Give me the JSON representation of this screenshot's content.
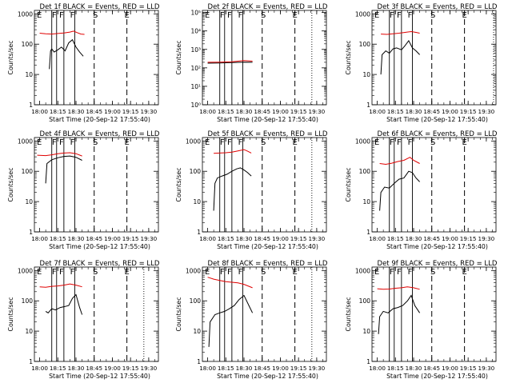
{
  "figure": {
    "ylabel": "Counts/sec",
    "xlabel": "Start Time (20-Sep-12 17:55:40)",
    "x_tick_labels": [
      "18:00",
      "18:15",
      "18:30",
      "18:45",
      "19:00",
      "19:15",
      "19:30"
    ],
    "y_tick_labels": [
      "1",
      "10",
      "100",
      "1000"
    ],
    "y_tick_labels_det2": [
      "10⁰",
      "10¹",
      "10²",
      "10³",
      "10⁴",
      "10⁵"
    ],
    "colors": {
      "events": "#000000",
      "lld": "#e00000",
      "axes": "#000000",
      "background": "#ffffff"
    }
  },
  "chart_data": [
    {
      "type": "line",
      "panel": 1,
      "title": "Det 1f BLACK = Events, RED = LLD",
      "ylim": [
        1,
        1300
      ],
      "yscale": "log",
      "xlim": [
        "17:55:40",
        "19:38"
      ],
      "markers": [
        {
          "label": "F",
          "t": "18:12"
        },
        {
          "label": "F",
          "t": "18:18"
        },
        {
          "label": "F",
          "t": "18:27"
        },
        {
          "label": "S",
          "t": "18:46"
        },
        {
          "label": "E",
          "t": "19:12"
        }
      ],
      "solid_vlines": [
        "18:10",
        "18:14",
        "18:20",
        "18:29"
      ],
      "dashed_vlines": [
        "18:45",
        "19:12"
      ],
      "dotted_vlines": [],
      "series": [
        {
          "name": "Events",
          "color": "#000000",
          "t": [
            "18:08",
            "18:09",
            "18:10",
            "18:12",
            "18:15",
            "18:18",
            "18:21",
            "18:24",
            "18:27",
            "18:30",
            "18:33",
            "18:36"
          ],
          "values": [
            15,
            60,
            70,
            55,
            65,
            80,
            60,
            110,
            140,
            80,
            55,
            40
          ]
        },
        {
          "name": "LLD",
          "color": "#e00000",
          "t": [
            "18:00",
            "18:05",
            "18:10",
            "18:15",
            "18:20",
            "18:25",
            "18:28",
            "18:31",
            "18:34",
            "18:37"
          ],
          "values": [
            230,
            220,
            215,
            225,
            235,
            250,
            270,
            240,
            215,
            210
          ]
        }
      ]
    },
    {
      "type": "line",
      "panel": 2,
      "title": "Det 2f BLACK = Events, RED = LLD",
      "ylim": [
        1,
        130000
      ],
      "yscale": "log",
      "xlim": [
        "17:55:40",
        "19:38"
      ],
      "markers": [
        {
          "label": "F",
          "t": "18:12"
        },
        {
          "label": "F",
          "t": "18:18"
        },
        {
          "label": "F",
          "t": "18:27"
        },
        {
          "label": "S",
          "t": "18:46"
        },
        {
          "label": "E",
          "t": "19:12"
        }
      ],
      "solid_vlines": [
        "18:10",
        "18:14",
        "18:20",
        "18:29"
      ],
      "dashed_vlines": [
        "18:45",
        "19:12"
      ],
      "dotted_vlines": [
        "19:26"
      ],
      "series": [
        {
          "name": "Events",
          "color": "#000000",
          "t": [
            "18:00",
            "18:10",
            "18:20",
            "18:30",
            "18:37"
          ],
          "values": [
            180,
            185,
            195,
            205,
            200
          ]
        },
        {
          "name": "LLD",
          "color": "#e00000",
          "t": [
            "18:00",
            "18:10",
            "18:20",
            "18:30",
            "18:37"
          ],
          "values": [
            200,
            205,
            215,
            250,
            230
          ]
        }
      ]
    },
    {
      "type": "line",
      "panel": 3,
      "title": "Det 3f BLACK = Events, RED = LLD",
      "ylim": [
        1,
        1300
      ],
      "yscale": "log",
      "xlim": [
        "17:55:40",
        "19:38"
      ],
      "markers": [
        {
          "label": "F",
          "t": "18:12"
        },
        {
          "label": "F",
          "t": "18:18"
        },
        {
          "label": "F",
          "t": "18:27"
        },
        {
          "label": "S",
          "t": "18:46"
        },
        {
          "label": "E",
          "t": "19:12"
        }
      ],
      "solid_vlines": [
        "18:10",
        "18:14",
        "18:20",
        "18:29"
      ],
      "dashed_vlines": [
        "18:45",
        "19:12"
      ],
      "dotted_vlines": [
        "19:36"
      ],
      "series": [
        {
          "name": "Events",
          "color": "#000000",
          "t": [
            "18:03",
            "18:04",
            "18:07",
            "18:10",
            "18:13",
            "18:16",
            "18:20",
            "18:23",
            "18:26",
            "18:29",
            "18:32",
            "18:35"
          ],
          "values": [
            10,
            45,
            60,
            50,
            70,
            75,
            65,
            90,
            130,
            75,
            60,
            45
          ]
        },
        {
          "name": "LLD",
          "color": "#e00000",
          "t": [
            "18:03",
            "18:08",
            "18:13",
            "18:18",
            "18:23",
            "18:28",
            "18:32",
            "18:35"
          ],
          "values": [
            215,
            210,
            220,
            230,
            245,
            260,
            245,
            230
          ]
        }
      ]
    },
    {
      "type": "line",
      "panel": 4,
      "title": "Det 4f BLACK = Events, RED = LLD",
      "ylim": [
        1,
        1300
      ],
      "yscale": "log",
      "xlim": [
        "17:55:40",
        "19:38"
      ],
      "markers": [
        {
          "label": "F",
          "t": "18:12"
        },
        {
          "label": "F",
          "t": "18:18"
        },
        {
          "label": "F",
          "t": "18:27"
        },
        {
          "label": "S",
          "t": "18:46"
        },
        {
          "label": "E",
          "t": "19:12"
        }
      ],
      "solid_vlines": [
        "18:10",
        "18:14",
        "18:20",
        "18:29"
      ],
      "dashed_vlines": [
        "18:45",
        "19:12"
      ],
      "dotted_vlines": [],
      "series": [
        {
          "name": "Events",
          "color": "#000000",
          "t": [
            "18:05",
            "18:06",
            "18:10",
            "18:15",
            "18:20",
            "18:25",
            "18:30",
            "18:35"
          ],
          "values": [
            40,
            180,
            240,
            280,
            310,
            320,
            290,
            230
          ]
        },
        {
          "name": "LLD",
          "color": "#e00000",
          "t": [
            "17:58",
            "18:05",
            "18:10",
            "18:15",
            "18:20",
            "18:25",
            "18:30",
            "18:35"
          ],
          "values": [
            340,
            330,
            350,
            380,
            400,
            410,
            380,
            320
          ]
        }
      ]
    },
    {
      "type": "line",
      "panel": 5,
      "title": "Det 5f BLACK = Events, RED = LLD",
      "ylim": [
        1,
        1300
      ],
      "yscale": "log",
      "xlim": [
        "17:55:40",
        "19:38"
      ],
      "markers": [
        {
          "label": "F",
          "t": "18:12"
        },
        {
          "label": "F",
          "t": "18:18"
        },
        {
          "label": "F",
          "t": "18:27"
        },
        {
          "label": "S",
          "t": "18:46"
        },
        {
          "label": "E",
          "t": "19:12"
        }
      ],
      "solid_vlines": [
        "18:10",
        "18:14",
        "18:20",
        "18:29"
      ],
      "dashed_vlines": [
        "18:45",
        "19:12"
      ],
      "dotted_vlines": [
        "19:26"
      ],
      "series": [
        {
          "name": "Events",
          "color": "#000000",
          "t": [
            "18:05",
            "18:06",
            "18:08",
            "18:12",
            "18:16",
            "18:20",
            "18:24",
            "18:27",
            "18:30",
            "18:33",
            "18:36"
          ],
          "values": [
            5,
            40,
            60,
            70,
            80,
            100,
            120,
            130,
            110,
            90,
            70
          ]
        },
        {
          "name": "LLD",
          "color": "#e00000",
          "t": [
            "18:05",
            "18:10",
            "18:15",
            "18:20",
            "18:25",
            "18:30",
            "18:33",
            "18:36"
          ],
          "values": [
            390,
            400,
            410,
            430,
            470,
            520,
            460,
            400
          ]
        }
      ]
    },
    {
      "type": "line",
      "panel": 6,
      "title": "Det 6f BLACK = Events, RED = LLD",
      "ylim": [
        1,
        1300
      ],
      "yscale": "log",
      "xlim": [
        "17:55:40",
        "19:38"
      ],
      "markers": [
        {
          "label": "F",
          "t": "18:12"
        },
        {
          "label": "F",
          "t": "18:18"
        },
        {
          "label": "F",
          "t": "18:27"
        },
        {
          "label": "S",
          "t": "18:46"
        },
        {
          "label": "E",
          "t": "19:12"
        }
      ],
      "solid_vlines": [
        "18:10",
        "18:14",
        "18:20",
        "18:29"
      ],
      "dashed_vlines": [
        "18:45",
        "19:12"
      ],
      "dotted_vlines": [],
      "series": [
        {
          "name": "Events",
          "color": "#000000",
          "t": [
            "18:02",
            "18:03",
            "18:06",
            "18:10",
            "18:14",
            "18:18",
            "18:22",
            "18:26",
            "18:29",
            "18:32",
            "18:35"
          ],
          "values": [
            5,
            20,
            30,
            28,
            40,
            55,
            60,
            100,
            90,
            60,
            45
          ]
        },
        {
          "name": "LLD",
          "color": "#e00000",
          "t": [
            "18:02",
            "18:07",
            "18:12",
            "18:17",
            "18:22",
            "18:27",
            "18:30",
            "18:35"
          ],
          "values": [
            180,
            170,
            185,
            210,
            230,
            290,
            230,
            180
          ]
        }
      ]
    },
    {
      "type": "line",
      "panel": 7,
      "title": "Det 7f BLACK = Events, RED = LLD",
      "ylim": [
        1,
        1300
      ],
      "yscale": "log",
      "xlim": [
        "17:55:40",
        "19:38"
      ],
      "markers": [
        {
          "label": "F",
          "t": "18:12"
        },
        {
          "label": "F",
          "t": "18:18"
        },
        {
          "label": "F",
          "t": "18:27"
        },
        {
          "label": "S",
          "t": "18:46"
        },
        {
          "label": "E",
          "t": "19:12"
        }
      ],
      "solid_vlines": [
        "18:10",
        "18:14",
        "18:20",
        "18:29"
      ],
      "dashed_vlines": [
        "18:45",
        "19:12"
      ],
      "dotted_vlines": [
        "19:26"
      ],
      "series": [
        {
          "name": "Events",
          "color": "#000000",
          "t": [
            "18:05",
            "18:07",
            "18:10",
            "18:13",
            "18:17",
            "18:21",
            "18:24",
            "18:27",
            "18:30",
            "18:33",
            "18:35"
          ],
          "values": [
            45,
            40,
            55,
            50,
            60,
            65,
            70,
            120,
            160,
            60,
            35
          ]
        },
        {
          "name": "LLD",
          "color": "#e00000",
          "t": [
            "18:00",
            "18:05",
            "18:10",
            "18:15",
            "18:20",
            "18:25",
            "18:30",
            "18:35"
          ],
          "values": [
            290,
            280,
            300,
            310,
            330,
            360,
            330,
            290
          ]
        }
      ]
    },
    {
      "type": "line",
      "panel": 8,
      "title": "Det 8f BLACK = Events, RED = LLD",
      "ylim": [
        1,
        1300
      ],
      "yscale": "log",
      "xlim": [
        "17:55:40",
        "19:38"
      ],
      "markers": [
        {
          "label": "F",
          "t": "18:12"
        },
        {
          "label": "F",
          "t": "18:18"
        },
        {
          "label": "F",
          "t": "18:27"
        },
        {
          "label": "S",
          "t": "18:46"
        },
        {
          "label": "E",
          "t": "19:12"
        }
      ],
      "solid_vlines": [
        "18:10",
        "18:14",
        "18:20",
        "18:29"
      ],
      "dashed_vlines": [
        "18:45",
        "19:12"
      ],
      "dotted_vlines": [
        "19:26"
      ],
      "series": [
        {
          "name": "Events",
          "color": "#000000",
          "t": [
            "18:01",
            "18:02",
            "18:06",
            "18:10",
            "18:14",
            "18:18",
            "18:22",
            "18:26",
            "18:30",
            "18:34",
            "18:37"
          ],
          "values": [
            3,
            20,
            35,
            40,
            45,
            55,
            70,
            110,
            150,
            70,
            40
          ]
        },
        {
          "name": "LLD",
          "color": "#e00000",
          "t": [
            "18:00",
            "18:05",
            "18:10",
            "18:15",
            "18:20",
            "18:25",
            "18:30",
            "18:37"
          ],
          "values": [
            600,
            520,
            470,
            430,
            410,
            390,
            350,
            270
          ]
        }
      ]
    },
    {
      "type": "line",
      "panel": 9,
      "title": "Det 9f BLACK = Events, RED = LLD",
      "ylim": [
        1,
        1300
      ],
      "yscale": "log",
      "xlim": [
        "17:55:40",
        "19:38"
      ],
      "markers": [
        {
          "label": "F",
          "t": "18:12"
        },
        {
          "label": "F",
          "t": "18:18"
        },
        {
          "label": "F",
          "t": "18:27"
        },
        {
          "label": "S",
          "t": "18:46"
        },
        {
          "label": "E",
          "t": "19:12"
        }
      ],
      "solid_vlines": [
        "18:10",
        "18:14",
        "18:20",
        "18:29"
      ],
      "dashed_vlines": [
        "18:45",
        "19:12"
      ],
      "dotted_vlines": [],
      "series": [
        {
          "name": "Events",
          "color": "#000000",
          "t": [
            "18:01",
            "18:02",
            "18:05",
            "18:09",
            "18:13",
            "18:17",
            "18:21",
            "18:25",
            "18:28",
            "18:31",
            "18:35"
          ],
          "values": [
            8,
            30,
            45,
            40,
            55,
            60,
            70,
            100,
            150,
            70,
            40
          ]
        },
        {
          "name": "LLD",
          "color": "#e00000",
          "t": [
            "18:00",
            "18:05",
            "18:10",
            "18:15",
            "18:20",
            "18:25",
            "18:30",
            "18:35"
          ],
          "values": [
            250,
            240,
            245,
            260,
            270,
            290,
            270,
            240
          ]
        }
      ]
    }
  ]
}
